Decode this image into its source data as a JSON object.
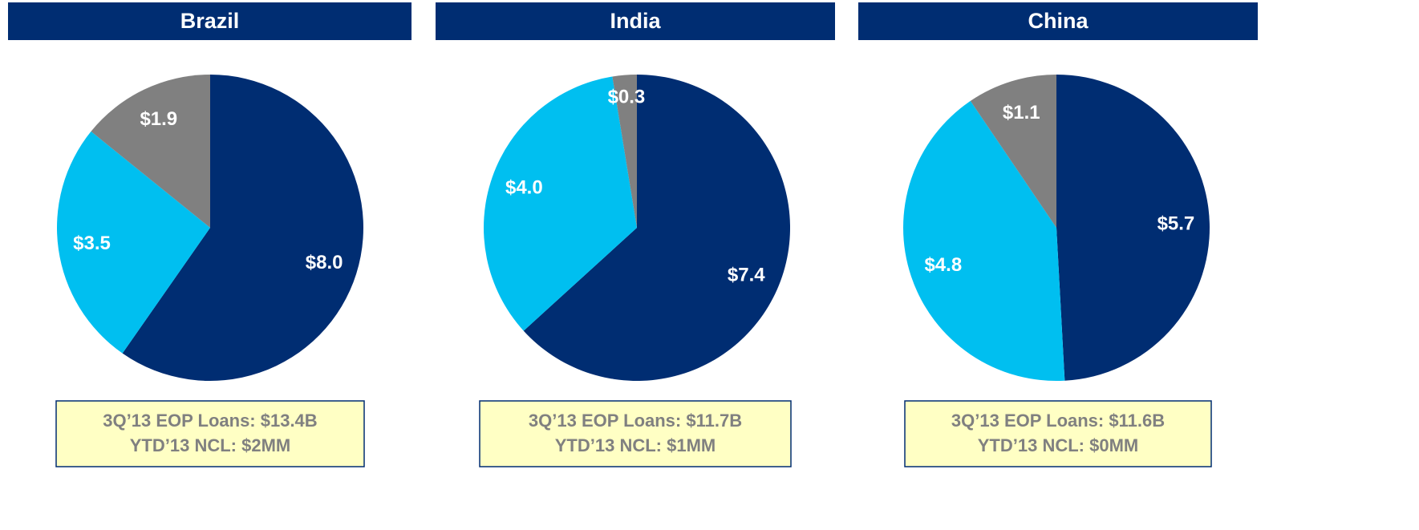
{
  "chart_data": [
    {
      "type": "pie",
      "title": "Brazil",
      "values": [
        8.0,
        3.5,
        1.9
      ],
      "value_labels": [
        "$8.0",
        "$3.5",
        "$1.9"
      ],
      "colors": [
        "#002d72",
        "#00bff0",
        "#808080"
      ],
      "annotations": [
        "3Q’13 EOP Loans: $13.4B",
        "YTD’13 NCL: $2MM"
      ]
    },
    {
      "type": "pie",
      "title": "India",
      "values": [
        7.4,
        4.0,
        0.3
      ],
      "value_labels": [
        "$7.4",
        "$4.0",
        "$0.3"
      ],
      "colors": [
        "#002d72",
        "#00bff0",
        "#808080"
      ],
      "annotations": [
        "3Q’13 EOP Loans: $11.7B",
        "YTD’13 NCL: $1MM"
      ]
    },
    {
      "type": "pie",
      "title": "China",
      "values": [
        5.7,
        4.8,
        1.1
      ],
      "value_labels": [
        "$5.7",
        "$4.8",
        "$1.1"
      ],
      "colors": [
        "#002d72",
        "#00bff0",
        "#808080"
      ],
      "annotations": [
        "3Q’13 EOP Loans: $11.6B",
        "YTD’13 NCL: $0MM"
      ]
    }
  ]
}
